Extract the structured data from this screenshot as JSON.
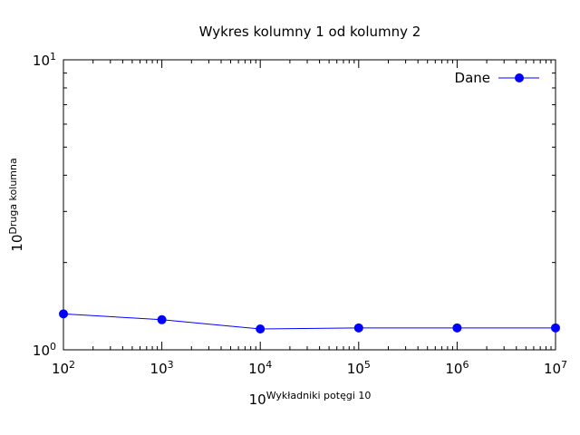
{
  "chart_data": {
    "type": "line",
    "title": "Wykres kolumny 1 od kolumny 2",
    "xlabel": {
      "base": "10",
      "exponent": "Wykładniki potęgi 10"
    },
    "ylabel": {
      "base": "10",
      "exponent": "Druga kolumna"
    },
    "x_scale": "log",
    "y_scale": "log",
    "xlim": [
      100,
      10000000
    ],
    "ylim": [
      1,
      10
    ],
    "x_ticks": [
      {
        "base": "10",
        "exp": "2"
      },
      {
        "base": "10",
        "exp": "3"
      },
      {
        "base": "10",
        "exp": "4"
      },
      {
        "base": "10",
        "exp": "5"
      },
      {
        "base": "10",
        "exp": "6"
      },
      {
        "base": "10",
        "exp": "7"
      }
    ],
    "y_ticks": [
      {
        "base": "10",
        "exp": "0"
      },
      {
        "base": "10",
        "exp": "1"
      }
    ],
    "grid": false,
    "legend_position": "top-right",
    "series": [
      {
        "name": "Dane",
        "color": "#0000ff",
        "x": [
          100,
          1000,
          10000,
          100000,
          1000000,
          10000000
        ],
        "y": [
          1.33,
          1.27,
          1.18,
          1.19,
          1.19,
          1.19
        ]
      }
    ]
  }
}
